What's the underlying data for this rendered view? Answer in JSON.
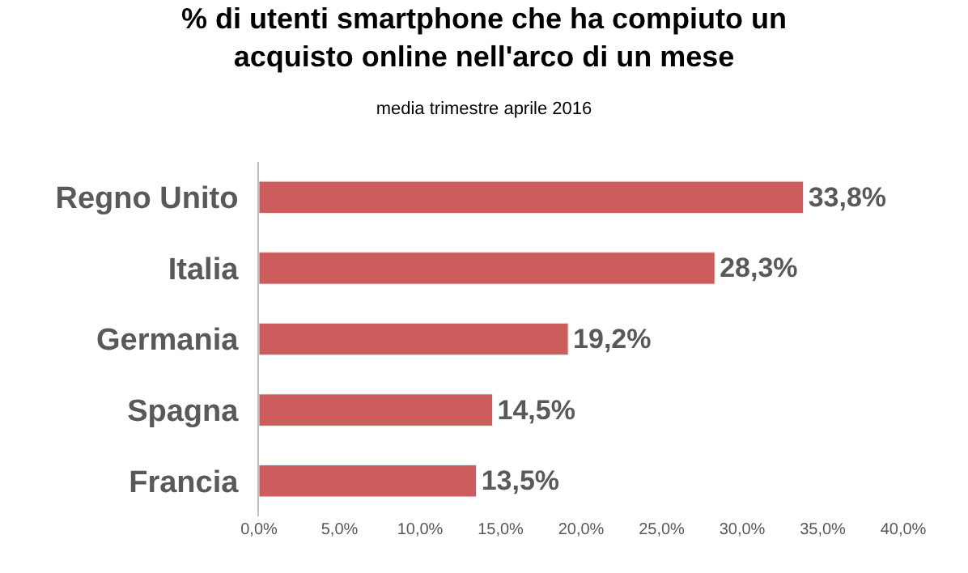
{
  "chart_data": {
    "type": "bar",
    "orientation": "horizontal",
    "title": "% di utenti smartphone che ha compiuto un\nacquisto online nell'arco di un mese",
    "subtitle": "media trimestre aprile 2016",
    "categories": [
      "Regno Unito",
      "Italia",
      "Germania",
      "Spagna",
      "Francia"
    ],
    "values": [
      33.8,
      28.3,
      19.2,
      14.5,
      13.5
    ],
    "value_labels": [
      "33,8%",
      "28,3%",
      "19,2%",
      "14,5%",
      "13,5%"
    ],
    "color": "#cd5c5c",
    "xlim": [
      0,
      40
    ],
    "xticks": [
      {
        "value": 0,
        "label": "0,0%"
      },
      {
        "value": 5,
        "label": "5,0%"
      },
      {
        "value": 10,
        "label": "10,0%"
      },
      {
        "value": 15,
        "label": "15,0%"
      },
      {
        "value": 20,
        "label": "20,0%"
      },
      {
        "value": 25,
        "label": "25,0%"
      },
      {
        "value": 30,
        "label": "30,0%"
      },
      {
        "value": 35,
        "label": "35,0%"
      },
      {
        "value": 40,
        "label": "40,0%"
      }
    ]
  }
}
